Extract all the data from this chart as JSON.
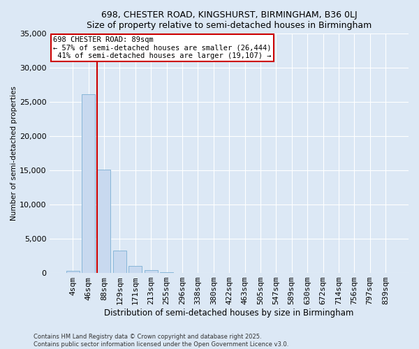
{
  "title": "698, CHESTER ROAD, KINGSHURST, BIRMINGHAM, B36 0LJ",
  "subtitle": "Size of property relative to semi-detached houses in Birmingham",
  "xlabel": "Distribution of semi-detached houses by size in Birmingham",
  "ylabel": "Number of semi-detached properties",
  "property_size": 89,
  "property_label": "698 CHESTER ROAD: 89sqm",
  "pct_smaller": 57,
  "count_smaller": 26444,
  "pct_larger": 41,
  "count_larger": 19107,
  "categories": [
    "4sqm",
    "46sqm",
    "88sqm",
    "129sqm",
    "171sqm",
    "213sqm",
    "255sqm",
    "296sqm",
    "338sqm",
    "380sqm",
    "422sqm",
    "463sqm",
    "505sqm",
    "547sqm",
    "589sqm",
    "630sqm",
    "672sqm",
    "714sqm",
    "756sqm",
    "797sqm",
    "839sqm"
  ],
  "values": [
    350,
    26100,
    15100,
    3300,
    1050,
    450,
    150,
    50,
    10,
    0,
    0,
    0,
    0,
    0,
    0,
    0,
    0,
    0,
    0,
    0,
    0
  ],
  "bar_color": "#c8d9ef",
  "bar_edge_color": "#7bafd4",
  "vline_color": "#cc0000",
  "vline_position": 2,
  "annotation_box_color": "#ffffff",
  "annotation_box_edge": "#cc0000",
  "ylim": [
    0,
    35000
  ],
  "yticks": [
    0,
    5000,
    10000,
    15000,
    20000,
    25000,
    30000,
    35000
  ],
  "background_color": "#dce8f5",
  "grid_color": "#ffffff",
  "footer": "Contains HM Land Registry data © Crown copyright and database right 2025.\nContains public sector information licensed under the Open Government Licence v3.0."
}
